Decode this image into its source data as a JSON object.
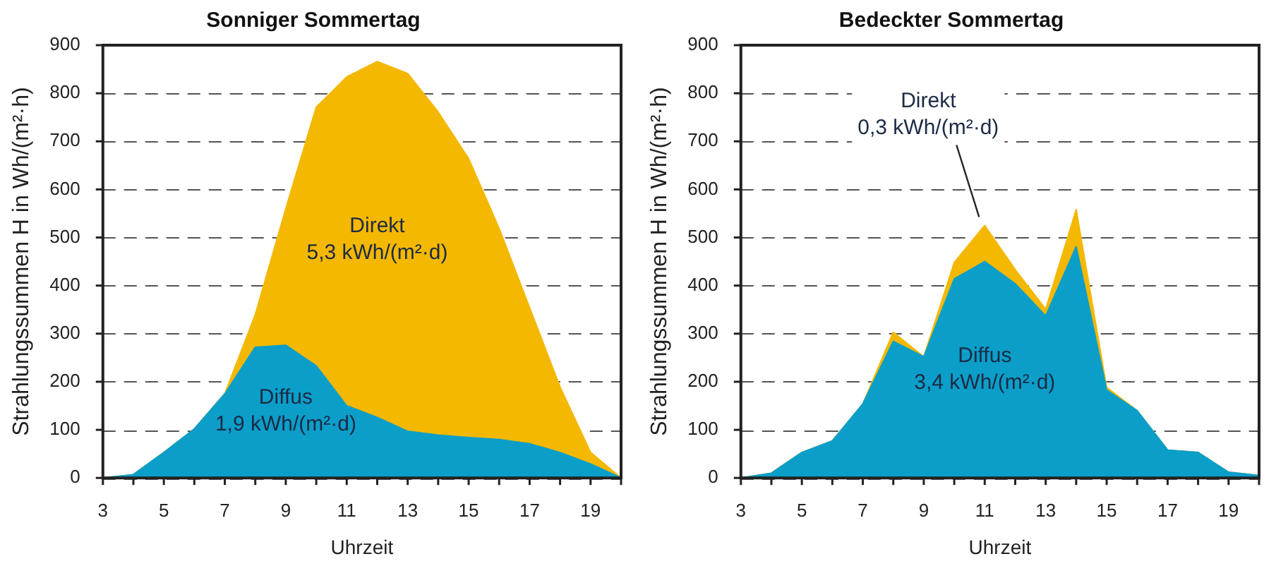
{
  "chart_data": [
    {
      "type": "area",
      "title": "Sonniger Sommertag",
      "xlabel": "Uhrzeit",
      "ylabel": "Strahlungssummen H in Wh/(m²·h)",
      "stacked": true,
      "grid": "y",
      "x": [
        3,
        4,
        5,
        6,
        7,
        8,
        9,
        10,
        11,
        12,
        13,
        14,
        15,
        16,
        17,
        18,
        19,
        20
      ],
      "xlim": [
        3,
        20
      ],
      "xticks": [
        3,
        {
          "value": 4,
          "label": null
        },
        5,
        {
          "value": 6,
          "label": null
        },
        7,
        {
          "value": 8,
          "label": null
        },
        9,
        {
          "value": 10,
          "label": null
        },
        11,
        {
          "value": 12,
          "label": null
        },
        13,
        {
          "value": 14,
          "label": null
        },
        15,
        {
          "value": 16,
          "label": null
        },
        17,
        {
          "value": 18,
          "label": null
        },
        19,
        {
          "value": 20,
          "label": null
        }
      ],
      "ylim": [
        0,
        900
      ],
      "yticks": [
        0,
        100,
        200,
        300,
        400,
        500,
        600,
        700,
        800,
        900
      ],
      "series": [
        {
          "color": "#0a9ec9",
          "values": [
            0,
            7,
            53,
            102,
            175,
            272,
            276,
            233,
            150,
            126,
            97,
            89,
            84,
            80,
            71,
            53,
            29,
            0
          ]
        },
        {
          "color": "#f5b800",
          "values": [
            0,
            0,
            0,
            0,
            0,
            68,
            284,
            538,
            684,
            740,
            744,
            672,
            580,
            439,
            283,
            136,
            24,
            0
          ]
        }
      ],
      "annotations": [
        "Diffus\n1,9 kWh/(m²·d)",
        "Direkt\n5,3 kWh/(m²·d)"
      ]
    },
    {
      "type": "area",
      "title": "Bedeckter Sommertag",
      "xlabel": "Uhrzeit",
      "ylabel": "Strahlungssummen H in Wh/(m²·h)",
      "stacked": true,
      "grid": "y",
      "x": [
        3,
        4,
        5,
        6,
        7,
        8,
        9,
        10,
        11,
        12,
        13,
        14,
        15,
        16,
        17,
        18,
        19,
        20
      ],
      "xlim": [
        3,
        20
      ],
      "xticks": [
        3,
        {
          "value": 4,
          "label": null
        },
        5,
        {
          "value": 6,
          "label": null
        },
        7,
        {
          "value": 8,
          "label": null
        },
        9,
        {
          "value": 10,
          "label": null
        },
        11,
        {
          "value": 12,
          "label": null
        },
        13,
        {
          "value": 14,
          "label": null
        },
        15,
        {
          "value": 16,
          "label": null
        },
        17,
        {
          "value": 18,
          "label": null
        },
        19,
        {
          "value": 20,
          "label": null
        }
      ],
      "ylim": [
        0,
        900
      ],
      "yticks": [
        0,
        100,
        200,
        300,
        400,
        500,
        600,
        700,
        800,
        900
      ],
      "series": [
        {
          "color": "#0a9ec9",
          "values": [
            0,
            10,
            53,
            77,
            154,
            284,
            252,
            414,
            450,
            404,
            337,
            481,
            183,
            140,
            58,
            53,
            12,
            5
          ]
        },
        {
          "color": "#f5b800",
          "values": [
            0,
            0,
            0,
            0,
            0,
            19,
            0,
            34,
            75,
            29,
            14,
            77,
            5,
            0,
            0,
            0,
            0,
            0
          ]
        }
      ],
      "annotations": [
        "Diffus\n3,4 kWh/(m²·d)",
        "Direkt\n0,3 kWh/(m²·d)"
      ]
    }
  ]
}
